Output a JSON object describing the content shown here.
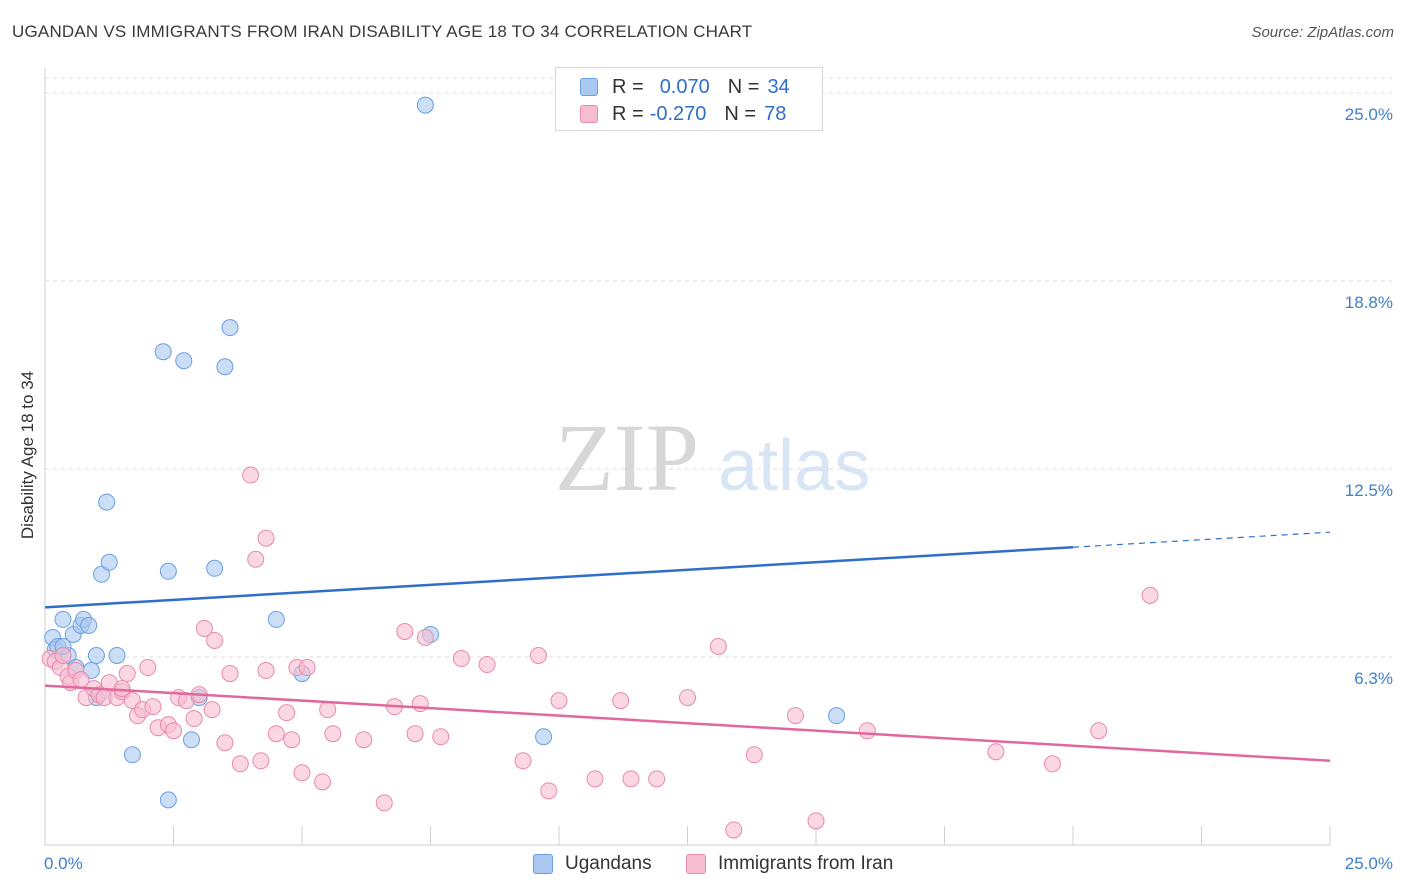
{
  "header": {
    "title": "UGANDAN VS IMMIGRANTS FROM IRAN DISABILITY AGE 18 TO 34 CORRELATION CHART",
    "source": "Source: ZipAtlas.com"
  },
  "watermark": {
    "zip": "ZIP",
    "atlas": "atlas"
  },
  "legend": {
    "rows": [
      {
        "r_label": "R =",
        "r_value": "0.070",
        "n_label": "N =",
        "n_value": "34",
        "color": "#a9c8f0",
        "border": "#6a9fe0"
      },
      {
        "r_label": "R =",
        "r_value": "-0.270",
        "n_label": "N =",
        "n_value": "78",
        "color": "#f6bcd0",
        "border": "#e88aab"
      }
    ]
  },
  "bottom_legend": {
    "series1": "Ugandans",
    "series2": "Immigrants from Iran"
  },
  "chart_data": {
    "type": "scatter",
    "title": "UGANDAN VS IMMIGRANTS FROM IRAN DISABILITY AGE 18 TO 34 CORRELATION CHART",
    "ylabel": "Disability Age 18 to 34",
    "xlabel": "",
    "xlim": [
      0,
      25
    ],
    "ylim": [
      0,
      25.5
    ],
    "x_tick_labels": [
      "0.0%",
      "25.0%"
    ],
    "y_tick_labels": [
      "25.0%",
      "18.8%",
      "12.5%",
      "6.3%"
    ],
    "y_ticks": [
      25.0,
      18.75,
      12.5,
      6.25
    ],
    "grid": true,
    "series": [
      {
        "name": "Ugandans",
        "color": "#a9c8f0",
        "edge": "#6a9fe0",
        "line_color": "#2f6fc9",
        "trend": {
          "x": [
            0,
            20
          ],
          "y": [
            7.9,
            9.9
          ],
          "dashed_to": [
            25,
            10.4
          ]
        },
        "points": [
          [
            0.15,
            6.9
          ],
          [
            0.2,
            6.5
          ],
          [
            0.25,
            6.6
          ],
          [
            0.35,
            7.5
          ],
          [
            0.45,
            6.3
          ],
          [
            0.55,
            7.0
          ],
          [
            0.6,
            5.9
          ],
          [
            0.7,
            7.3
          ],
          [
            0.75,
            7.5
          ],
          [
            0.85,
            7.3
          ],
          [
            0.9,
            5.8
          ],
          [
            1.0,
            4.9
          ],
          [
            1.1,
            9.0
          ],
          [
            1.2,
            11.4
          ],
          [
            1.25,
            9.4
          ],
          [
            1.4,
            6.3
          ],
          [
            1.7,
            3.0
          ],
          [
            2.3,
            16.4
          ],
          [
            2.4,
            9.1
          ],
          [
            2.7,
            16.1
          ],
          [
            2.85,
            3.5
          ],
          [
            3.0,
            4.9
          ],
          [
            3.3,
            9.2
          ],
          [
            3.5,
            15.9
          ],
          [
            3.6,
            17.2
          ],
          [
            4.5,
            7.5
          ],
          [
            5.0,
            5.7
          ],
          [
            7.4,
            24.6
          ],
          [
            7.5,
            7.0
          ],
          [
            9.7,
            3.6
          ],
          [
            15.4,
            4.3
          ],
          [
            2.4,
            1.5
          ],
          [
            1.0,
            6.3
          ],
          [
            0.35,
            6.6
          ]
        ]
      },
      {
        "name": "Immigrants from Iran",
        "color": "#f6bcd0",
        "edge": "#e88aab",
        "line_color": "#e0689a",
        "trend": {
          "x": [
            0,
            25
          ],
          "y": [
            5.3,
            2.8
          ]
        },
        "points": [
          [
            0.1,
            6.2
          ],
          [
            0.2,
            6.1
          ],
          [
            0.3,
            5.9
          ],
          [
            0.35,
            6.3
          ],
          [
            0.45,
            5.6
          ],
          [
            0.5,
            5.4
          ],
          [
            0.6,
            5.8
          ],
          [
            0.7,
            5.5
          ],
          [
            0.8,
            4.9
          ],
          [
            0.95,
            5.2
          ],
          [
            1.05,
            5.0
          ],
          [
            1.15,
            4.9
          ],
          [
            1.25,
            5.4
          ],
          [
            1.4,
            4.9
          ],
          [
            1.5,
            5.1
          ],
          [
            1.6,
            5.7
          ],
          [
            1.7,
            4.8
          ],
          [
            1.8,
            4.3
          ],
          [
            1.9,
            4.5
          ],
          [
            2.0,
            5.9
          ],
          [
            2.1,
            4.6
          ],
          [
            2.2,
            3.9
          ],
          [
            2.4,
            4.0
          ],
          [
            2.5,
            3.8
          ],
          [
            2.6,
            4.9
          ],
          [
            2.75,
            4.8
          ],
          [
            2.9,
            4.2
          ],
          [
            3.0,
            5.0
          ],
          [
            3.1,
            7.2
          ],
          [
            3.25,
            4.5
          ],
          [
            3.3,
            6.8
          ],
          [
            3.5,
            3.4
          ],
          [
            3.6,
            5.7
          ],
          [
            3.8,
            2.7
          ],
          [
            4.0,
            12.3
          ],
          [
            4.1,
            9.5
          ],
          [
            4.2,
            2.8
          ],
          [
            4.3,
            5.8
          ],
          [
            4.3,
            10.2
          ],
          [
            4.5,
            3.7
          ],
          [
            4.7,
            4.4
          ],
          [
            4.8,
            3.5
          ],
          [
            4.9,
            5.9
          ],
          [
            5.0,
            2.4
          ],
          [
            5.1,
            5.9
          ],
          [
            5.4,
            2.1
          ],
          [
            5.5,
            4.5
          ],
          [
            5.6,
            3.7
          ],
          [
            6.2,
            3.5
          ],
          [
            6.6,
            1.4
          ],
          [
            6.8,
            4.6
          ],
          [
            7.0,
            7.1
          ],
          [
            7.2,
            3.7
          ],
          [
            7.3,
            4.7
          ],
          [
            7.4,
            6.9
          ],
          [
            7.7,
            3.6
          ],
          [
            8.1,
            6.2
          ],
          [
            8.6,
            6.0
          ],
          [
            9.3,
            2.8
          ],
          [
            9.6,
            6.3
          ],
          [
            9.8,
            1.8
          ],
          [
            10.0,
            4.8
          ],
          [
            10.7,
            2.2
          ],
          [
            11.2,
            4.8
          ],
          [
            11.4,
            2.2
          ],
          [
            11.9,
            2.2
          ],
          [
            12.5,
            4.9
          ],
          [
            13.1,
            6.6
          ],
          [
            13.4,
            0.5
          ],
          [
            13.8,
            3.0
          ],
          [
            14.6,
            4.3
          ],
          [
            15.0,
            0.8
          ],
          [
            16.0,
            3.8
          ],
          [
            18.5,
            3.1
          ],
          [
            19.6,
            2.7
          ],
          [
            20.5,
            3.8
          ],
          [
            21.5,
            8.3
          ],
          [
            1.5,
            5.2
          ]
        ]
      }
    ]
  }
}
